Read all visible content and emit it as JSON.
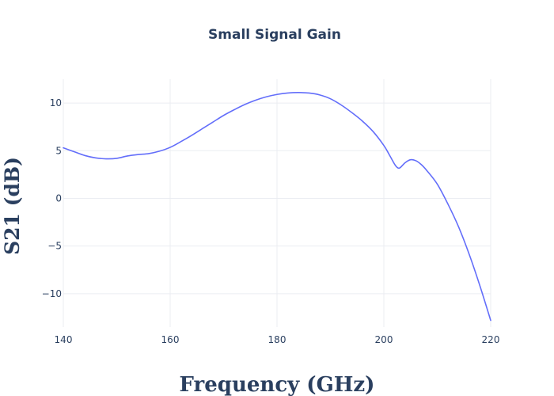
{
  "chart_data": {
    "type": "line",
    "title": "Small Signal Gain",
    "xlabel": "Frequency (GHz)",
    "ylabel": "S21 (dB)",
    "xlim": [
      140,
      220
    ],
    "ylim": [
      -13.5,
      12.5
    ],
    "x_ticks": [
      140,
      160,
      180,
      200,
      220
    ],
    "y_ticks": [
      10,
      5,
      0,
      -5,
      -10
    ],
    "y_tick_labels": [
      "10",
      "5",
      "0",
      "−5",
      "−10"
    ],
    "grid": true,
    "series": [
      {
        "color": "#636efa",
        "x": [
          140,
          142,
          144,
          146,
          148,
          150,
          152,
          154,
          156,
          158,
          160,
          162,
          164,
          166,
          168,
          170,
          172,
          174,
          176,
          178,
          180,
          182,
          184,
          186,
          188,
          190,
          192,
          194,
          196,
          198,
          200,
          201,
          202,
          202.5,
          203,
          204,
          205,
          206,
          207,
          208,
          210,
          212,
          214,
          216,
          218,
          220
        ],
        "y": [
          5.3,
          4.9,
          4.5,
          4.25,
          4.15,
          4.2,
          4.45,
          4.6,
          4.7,
          4.95,
          5.35,
          5.95,
          6.6,
          7.3,
          8.0,
          8.7,
          9.3,
          9.85,
          10.3,
          10.65,
          10.9,
          11.05,
          11.1,
          11.05,
          10.85,
          10.45,
          9.8,
          9.0,
          8.1,
          7.0,
          5.55,
          4.6,
          3.6,
          3.25,
          3.2,
          3.75,
          4.05,
          3.95,
          3.55,
          2.95,
          1.5,
          -0.6,
          -3.0,
          -5.9,
          -9.2,
          -12.8
        ]
      }
    ]
  }
}
